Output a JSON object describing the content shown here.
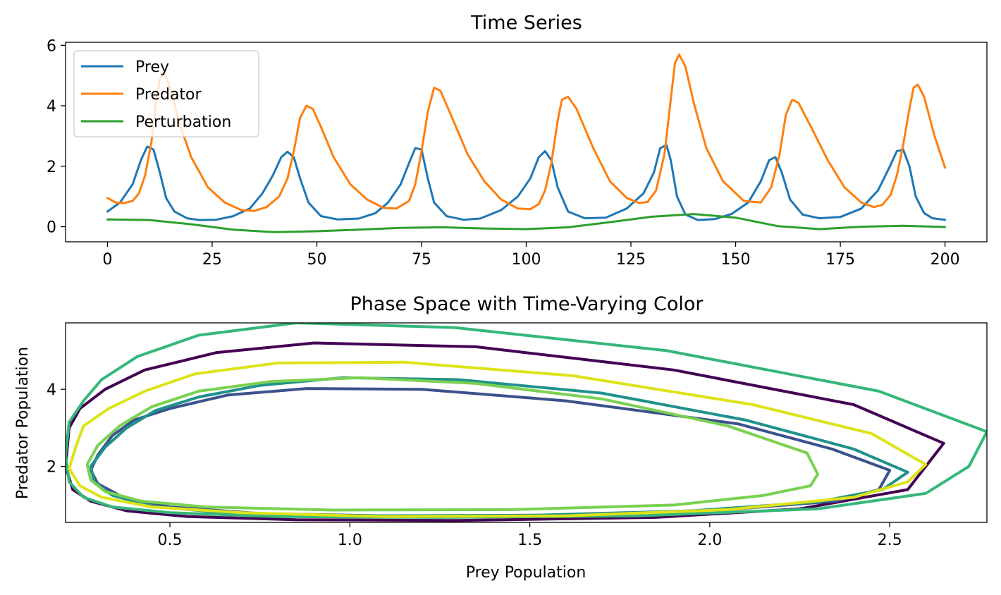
{
  "colors": {
    "prey": "#1f77b4",
    "predator": "#ff7f0e",
    "perturbation": "#2ca02c",
    "phase_palette": [
      "#440154",
      "#3b528b",
      "#21918c",
      "#35b779",
      "#7ad151",
      "#dde318"
    ]
  },
  "chart_data": [
    {
      "type": "line",
      "title": "Time Series",
      "xlabel": "",
      "ylabel": "",
      "xlim": [
        -10,
        210
      ],
      "ylim": [
        -0.5,
        6.1
      ],
      "xticks": [
        0,
        25,
        50,
        75,
        100,
        125,
        150,
        175,
        200
      ],
      "yticks": [
        0,
        2,
        4,
        6
      ],
      "grid": false,
      "legend": {
        "placement": "upper-left",
        "entries": [
          "Prey",
          "Predator",
          "Perturbation"
        ]
      },
      "series": [
        {
          "name": "Prey",
          "color_key": "prey",
          "x": [
            0,
            3,
            6,
            8,
            9.5,
            11,
            12.5,
            14,
            16,
            19,
            22,
            26,
            30,
            34,
            37,
            39.5,
            41.5,
            43,
            44.5,
            46,
            48,
            51,
            55,
            60,
            64,
            67,
            70,
            72,
            73.5,
            75,
            76.5,
            78,
            81,
            85,
            89,
            94,
            98,
            101,
            103,
            104.5,
            106,
            107.5,
            110,
            114,
            119,
            124,
            128,
            130.5,
            132,
            133.5,
            134.5,
            136,
            138,
            141,
            145,
            149,
            153,
            156,
            158,
            159.5,
            161,
            163,
            166,
            170,
            175,
            180,
            184,
            186.5,
            188.5,
            190,
            191.5,
            193,
            195,
            197,
            200
          ],
          "y": [
            0.5,
            0.8,
            1.4,
            2.2,
            2.65,
            2.55,
            1.8,
            0.95,
            0.5,
            0.28,
            0.22,
            0.23,
            0.35,
            0.6,
            1.1,
            1.7,
            2.3,
            2.48,
            2.3,
            1.6,
            0.8,
            0.35,
            0.24,
            0.27,
            0.45,
            0.8,
            1.4,
            2.1,
            2.6,
            2.55,
            1.6,
            0.8,
            0.35,
            0.23,
            0.27,
            0.55,
            1.0,
            1.6,
            2.3,
            2.5,
            2.2,
            1.3,
            0.5,
            0.28,
            0.3,
            0.6,
            1.1,
            1.8,
            2.6,
            2.7,
            2.2,
            1.0,
            0.4,
            0.22,
            0.25,
            0.42,
            0.8,
            1.5,
            2.2,
            2.3,
            1.8,
            0.9,
            0.4,
            0.28,
            0.32,
            0.6,
            1.2,
            1.9,
            2.5,
            2.55,
            2.0,
            1.0,
            0.45,
            0.28,
            0.23
          ]
        },
        {
          "name": "Predator",
          "color_key": "predator",
          "x": [
            0,
            2,
            4,
            6,
            7.5,
            9,
            10.5,
            11.5,
            12.5,
            13.5,
            15,
            17,
            20,
            24,
            28,
            32,
            35,
            38,
            41,
            43,
            44.5,
            46,
            47.5,
            49,
            51,
            54,
            58,
            62,
            66,
            69,
            72,
            73.5,
            75,
            76.5,
            78,
            79.5,
            82,
            86,
            90,
            94,
            98,
            101,
            103,
            104.5,
            106,
            107.5,
            108.5,
            110,
            112,
            116,
            120,
            124,
            127,
            129,
            131,
            133,
            134.5,
            135.5,
            136.5,
            138,
            140,
            143,
            147,
            152,
            156,
            158.5,
            160.5,
            162,
            163.5,
            165,
            168,
            172,
            176,
            180,
            183,
            185,
            187,
            188.5,
            190,
            191.5,
            192.5,
            193.5,
            195,
            197.5,
            200
          ],
          "y": [
            0.95,
            0.8,
            0.78,
            0.85,
            1.1,
            1.7,
            2.8,
            4.0,
            4.9,
            5.1,
            4.6,
            3.5,
            2.3,
            1.3,
            0.8,
            0.55,
            0.52,
            0.65,
            1.0,
            1.6,
            2.5,
            3.6,
            4.0,
            3.9,
            3.3,
            2.3,
            1.4,
            0.9,
            0.62,
            0.6,
            0.85,
            1.4,
            2.5,
            3.8,
            4.6,
            4.5,
            3.7,
            2.4,
            1.5,
            0.9,
            0.6,
            0.58,
            0.75,
            1.2,
            2.1,
            3.5,
            4.2,
            4.3,
            3.9,
            2.6,
            1.5,
            0.95,
            0.78,
            0.82,
            1.2,
            2.4,
            4.2,
            5.4,
            5.7,
            5.3,
            4.1,
            2.6,
            1.5,
            0.85,
            0.8,
            1.3,
            2.4,
            3.7,
            4.2,
            4.1,
            3.3,
            2.2,
            1.3,
            0.8,
            0.65,
            0.72,
            1.05,
            1.7,
            2.7,
            3.9,
            4.6,
            4.7,
            4.3,
            3.0,
            1.95
          ]
        },
        {
          "name": "Perturbation",
          "color_key": "perturbation",
          "x": [
            0,
            10,
            20,
            30,
            40,
            50,
            60,
            70,
            80,
            90,
            100,
            110,
            120,
            130,
            140,
            150,
            160,
            170,
            180,
            190,
            200
          ],
          "y": [
            0.24,
            0.22,
            0.08,
            -0.1,
            -0.18,
            -0.15,
            -0.1,
            -0.04,
            -0.02,
            -0.06,
            -0.08,
            -0.02,
            0.15,
            0.33,
            0.42,
            0.3,
            0.02,
            -0.08,
            0.0,
            0.03,
            -0.01
          ]
        }
      ]
    },
    {
      "type": "line",
      "title": "Phase Space with Time-Varying Color",
      "xlabel": "Prey Population",
      "ylabel": "Predator Population",
      "xlim": [
        0.21,
        2.77
      ],
      "ylim": [
        0.55,
        5.72
      ],
      "xticks": [
        0.5,
        1.0,
        1.5,
        2.0,
        2.5
      ],
      "yticks": [
        2,
        4
      ],
      "grid": false,
      "colormap": "viridis",
      "series": [
        {
          "color_index": 0,
          "x": [
            2.65,
            2.4,
            1.9,
            1.35,
            0.9,
            0.63,
            0.43,
            0.32,
            0.25,
            0.22,
            0.21,
            0.23,
            0.28,
            0.38,
            0.55,
            0.85,
            1.3,
            1.85,
            2.25,
            2.55,
            2.65
          ],
          "y": [
            2.6,
            3.6,
            4.5,
            5.1,
            5.2,
            4.95,
            4.5,
            4.0,
            3.5,
            3.0,
            2.0,
            1.4,
            1.1,
            0.85,
            0.7,
            0.62,
            0.6,
            0.68,
            0.9,
            1.4,
            2.6
          ]
        },
        {
          "color_index": 1,
          "x": [
            2.5,
            2.34,
            2.08,
            1.6,
            1.2,
            0.88,
            0.66,
            0.5,
            0.4,
            0.34,
            0.3,
            0.28,
            0.3,
            0.37,
            0.5,
            0.75,
            1.1,
            1.6,
            2.05,
            2.35,
            2.47,
            2.5
          ],
          "y": [
            1.9,
            2.45,
            3.1,
            3.7,
            4.0,
            4.02,
            3.85,
            3.5,
            3.2,
            2.8,
            2.3,
            1.9,
            1.55,
            1.2,
            0.95,
            0.78,
            0.72,
            0.74,
            0.88,
            1.1,
            1.4,
            1.9
          ]
        },
        {
          "color_index": 2,
          "x": [
            2.55,
            2.4,
            2.1,
            1.7,
            1.3,
            0.98,
            0.75,
            0.58,
            0.46,
            0.38,
            0.32,
            0.28,
            0.29,
            0.34,
            0.45,
            0.65,
            1.0,
            1.5,
            1.95,
            2.3,
            2.48,
            2.55
          ],
          "y": [
            1.85,
            2.45,
            3.2,
            3.9,
            4.25,
            4.3,
            4.1,
            3.8,
            3.45,
            3.0,
            2.5,
            2.0,
            1.6,
            1.25,
            0.97,
            0.8,
            0.72,
            0.73,
            0.85,
            1.08,
            1.4,
            1.85
          ]
        },
        {
          "color_index": 3,
          "x": [
            2.77,
            2.47,
            1.88,
            1.29,
            0.85,
            0.58,
            0.41,
            0.31,
            0.26,
            0.22,
            0.21,
            0.22,
            0.26,
            0.34,
            0.5,
            0.8,
            1.25,
            1.8,
            2.3,
            2.6,
            2.72,
            2.77
          ],
          "y": [
            2.9,
            3.95,
            5.0,
            5.6,
            5.72,
            5.4,
            4.85,
            4.25,
            3.7,
            3.15,
            2.3,
            1.6,
            1.2,
            0.95,
            0.8,
            0.7,
            0.68,
            0.72,
            0.9,
            1.3,
            2.0,
            2.9
          ]
        },
        {
          "color_index": 4,
          "x": [
            2.3,
            2.27,
            2.05,
            1.7,
            1.35,
            1.03,
            0.78,
            0.58,
            0.45,
            0.36,
            0.3,
            0.27,
            0.28,
            0.32,
            0.42,
            0.6,
            0.95,
            1.45,
            1.9,
            2.15,
            2.28,
            2.3
          ],
          "y": [
            1.8,
            2.35,
            3.05,
            3.75,
            4.15,
            4.3,
            4.2,
            3.95,
            3.55,
            3.05,
            2.55,
            2.05,
            1.65,
            1.35,
            1.1,
            0.95,
            0.87,
            0.88,
            1.0,
            1.25,
            1.5,
            1.8
          ]
        },
        {
          "color_index": 5,
          "x": [
            2.6,
            2.45,
            2.12,
            1.62,
            1.15,
            0.8,
            0.57,
            0.43,
            0.33,
            0.26,
            0.24,
            0.22,
            0.25,
            0.31,
            0.45,
            0.7,
            1.1,
            1.6,
            2.05,
            2.4,
            2.55,
            2.6
          ],
          "y": [
            2.05,
            2.85,
            3.6,
            4.35,
            4.7,
            4.68,
            4.4,
            3.95,
            3.5,
            3.05,
            2.55,
            1.95,
            1.5,
            1.2,
            0.95,
            0.8,
            0.7,
            0.72,
            0.88,
            1.2,
            1.6,
            2.05
          ]
        }
      ]
    }
  ]
}
